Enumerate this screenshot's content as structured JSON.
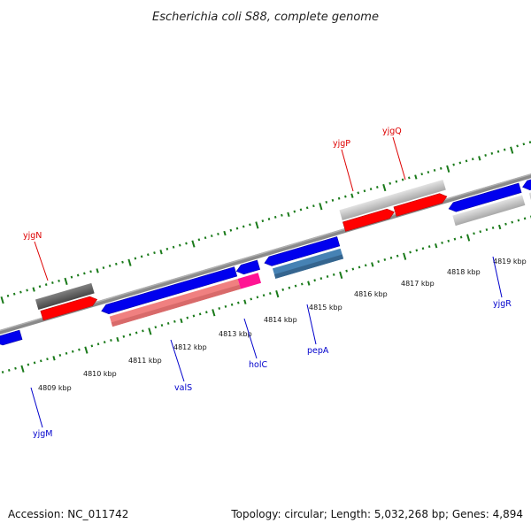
{
  "title": "Escherichia coli S88, complete genome",
  "footer": {
    "accession": "Accession: NC_011742",
    "summary": "Topology: circular; Length: 5,032,268 bp; Genes: 4,894"
  },
  "ticks": [
    {
      "label": "4809 kbp"
    },
    {
      "label": "4810 kbp"
    },
    {
      "label": "4811 kbp"
    },
    {
      "label": "4812 kbp"
    },
    {
      "label": "4813 kbp"
    },
    {
      "label": "4814 kbp"
    },
    {
      "label": "4815 kbp"
    },
    {
      "label": "4816 kbp"
    },
    {
      "label": "4817 kbp"
    },
    {
      "label": "4818 kbp"
    },
    {
      "label": "4819 kbp"
    }
  ],
  "gene_labels": [
    {
      "name": "yjgN",
      "color": "#dd0000"
    },
    {
      "name": "yjgP",
      "color": "#dd0000"
    },
    {
      "name": "yjgQ",
      "color": "#dd0000"
    },
    {
      "name": "yjgM",
      "color": "#0000cc"
    },
    {
      "name": "valS",
      "color": "#0000cc"
    },
    {
      "name": "holC",
      "color": "#0000cc"
    },
    {
      "name": "pepA",
      "color": "#0000cc"
    },
    {
      "name": "yjgR",
      "color": "#0000cc"
    }
  ],
  "colors": {
    "forward_cds": "#ff0000",
    "reverse_cds": "#0000ee",
    "dark_gray_feature": "#666666",
    "light_gray_feature": "#c4c4c4",
    "pink_feature": "#f08080",
    "magenta_feature": "#ff1493",
    "steel_blue_feature": "#4682b4",
    "backbone": "#808080",
    "tick_marks": "#1a7a1a"
  }
}
